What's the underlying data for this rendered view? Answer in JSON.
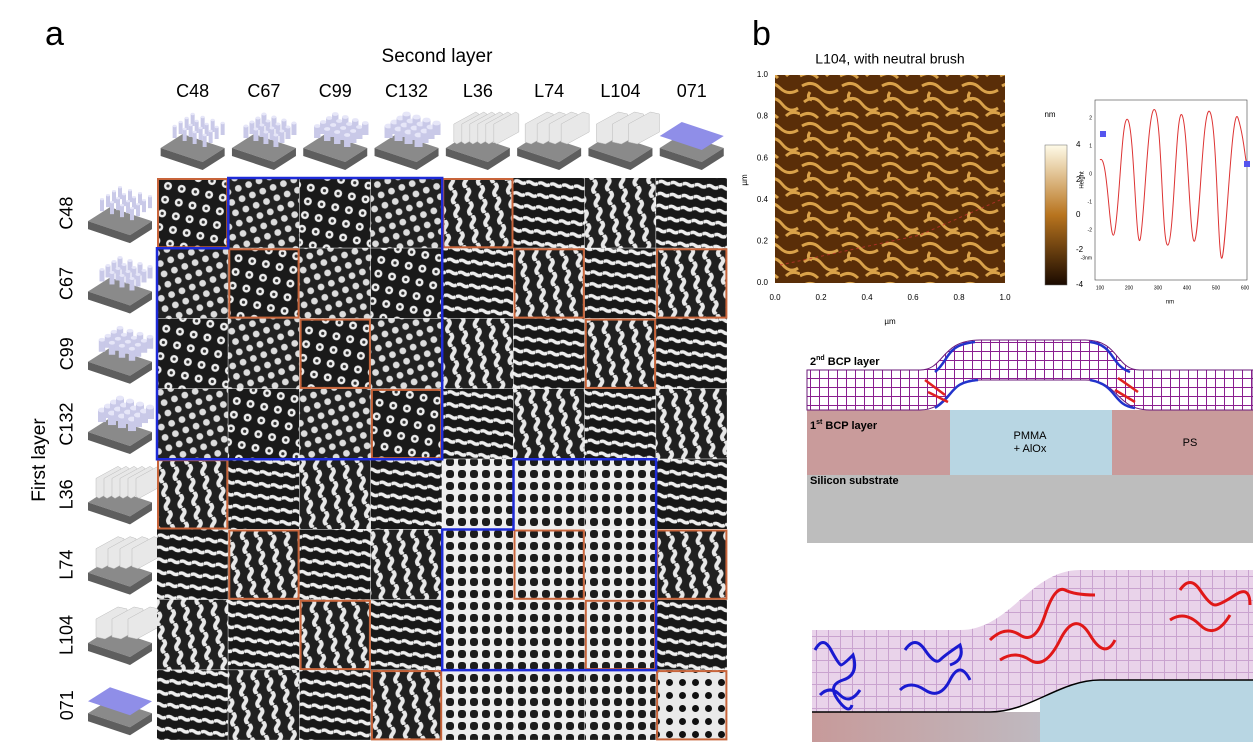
{
  "panel_a": {
    "label": "a",
    "column_title": "Second layer",
    "row_title": "First layer",
    "columns": [
      "C48",
      "C67",
      "C99",
      "C132",
      "L36",
      "L74",
      "L104",
      "071"
    ],
    "rows": [
      "C48",
      "C67",
      "C99",
      "C132",
      "L36",
      "L74",
      "L104",
      "071"
    ]
  },
  "panel_b": {
    "label": "b",
    "afm": {
      "title": "L104, with neutral brush",
      "x_label": "µm",
      "y_label": "µm",
      "x_ticks": [
        "0.0",
        "0.2",
        "0.4",
        "0.6",
        "0.8",
        "1.0"
      ],
      "y_ticks": [
        "0.0",
        "0.2",
        "0.4",
        "0.6",
        "0.8",
        "1.0"
      ],
      "colorbar_unit": "nm",
      "colorbar_ticks": [
        "4",
        "2",
        "0",
        "-2",
        "-4"
      ]
    },
    "profile": {
      "y_label": "Height",
      "x_label": "nm",
      "y_ticks": [
        "2",
        "1",
        "0",
        "-1",
        "-2",
        "-3nm"
      ],
      "x_ticks": [
        "100",
        "200",
        "300",
        "400",
        "500",
        "600"
      ]
    },
    "schematic": {
      "layer2_number": "2",
      "layer2_suffix": "nd",
      "layer2_text": " BCP layer",
      "layer1_number": "1",
      "layer1_suffix": "st",
      "layer1_text": " BCP layer",
      "pmma_line1": "PMMA",
      "pmma_line2": "+ AlOx",
      "ps": "PS",
      "substrate": "Silicon substrate"
    }
  }
}
